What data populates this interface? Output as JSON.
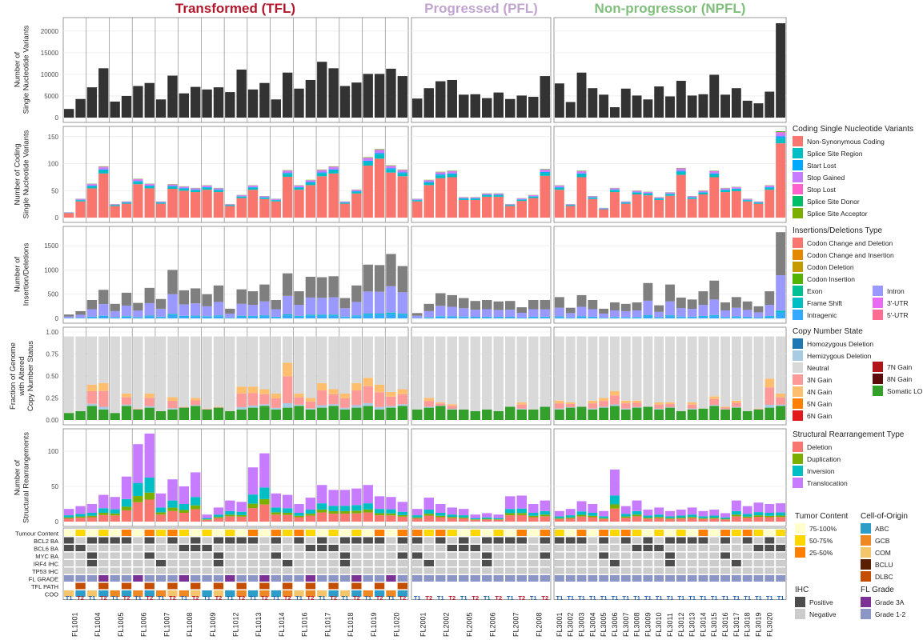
{
  "groups": [
    {
      "label": "Transformed (TFL)",
      "color": "#b2182b"
    },
    {
      "label": "Progressed (PFL)",
      "color": "#c2a5cf"
    },
    {
      "label": "Non-progressor (NPFL)",
      "color": "#7fbf7b"
    }
  ],
  "panel_labels": {
    "snv": [
      "Number of",
      "Single Nucleotide Variants"
    ],
    "coding": [
      "Number of Coding",
      "Single Nucleotide Variants"
    ],
    "indel": [
      "Number of",
      "Insertion/Deletions"
    ],
    "cn": [
      "Fraction of Genome",
      "with Altered",
      "Copy Number Status"
    ],
    "sv": [
      "Number of",
      "Structural Rearrangements"
    ]
  },
  "colors": {
    "grid": "#ebebeb",
    "frame": "#7f7f7f",
    "dark_bar": "#333333",
    "non_synonymous": "#f8766d",
    "splice_region": "#00bfc4",
    "start_lost": "#00a9ff",
    "stop_gained": "#c77cff",
    "stop_lost": "#ff61cc",
    "splice_donor": "#00be67",
    "splice_acceptor": "#7cae00",
    "indel_grey": "#7f7f7f",
    "intron": "#9999ff",
    "frameshift": "#00bfc4",
    "intragenic": "#33aaff",
    "neutral": "#d9d9d9",
    "hemizygous": "#a6cbe3",
    "homozygous": "#1f78b4",
    "gain3": "#fb9a99",
    "gain4": "#fdbf6f",
    "gain5": "#ff7f00",
    "gain6": "#e31a1c",
    "gain7": "#b11518",
    "gain8": "#5c0a0a",
    "loh": "#33a02c",
    "sv_deletion": "#f8766d",
    "sv_duplication": "#7cae00",
    "sv_inversion": "#00bfc4",
    "sv_translocation": "#c77cff",
    "annot_grey": "#cccccc",
    "annot_dark": "#4d4d4d",
    "tc_75": "#ffffcc",
    "tc_50": "#ffd700",
    "tc_25": "#ff7f00",
    "grade_3a": "#7b3294",
    "grade_12": "#8c96c6",
    "path_dlbc": "#c44e00",
    "path_bclu": "#5a1f00",
    "coo_gcb": "#ee8822",
    "coo_abc": "#2b9dc8",
    "coo_com": "#f4c56a"
  },
  "chart_data": [
    {
      "type": "bar",
      "title": "",
      "ylabel": "Number of Single Nucleotide Variants",
      "ylim": [
        0,
        22000
      ],
      "yticks": [
        0,
        5000,
        10000,
        15000,
        20000
      ],
      "facets": [
        {
          "name": "Transformed (TFL)",
          "values": [
            2000,
            4300,
            7000,
            11400,
            3700,
            5000,
            7300,
            8000,
            4200,
            9700,
            5600,
            7100,
            6500,
            7000,
            5900,
            11100,
            6500,
            8000,
            4200,
            10400,
            6700,
            8700,
            12900,
            11400,
            7300,
            8100,
            10100,
            10100,
            11300,
            9600
          ]
        },
        {
          "name": "Progressed (PFL)",
          "values": [
            4400,
            6800,
            8400,
            8700,
            5300,
            5400,
            4500,
            5800,
            4300,
            5100,
            4800,
            9600
          ]
        },
        {
          "name": "Non-progressor (NPFL)",
          "values": [
            7900,
            3600,
            10400,
            6800,
            5300,
            2400,
            6700,
            5100,
            4200,
            7200,
            4900,
            8500,
            5100,
            5400,
            9900,
            5300,
            6800,
            3900,
            3300,
            6000,
            21800
          ]
        }
      ]
    },
    {
      "type": "bar",
      "title": "",
      "ylabel": "Number of Coding Single Nucleotide Variants",
      "ylim": [
        0,
        160
      ],
      "yticks": [
        0,
        50,
        100,
        150
      ],
      "legend_title": "Coding Single Nucleotide Variants",
      "series": [
        "Non-Synonymous Coding",
        "Splice Site Region",
        "Start Lost",
        "Stop Gained",
        "Stop Lost",
        "Splice Site Donor",
        "Splice Site Acceptor"
      ],
      "facets": [
        {
          "name": "Transformed (TFL)",
          "totals": [
            10,
            35,
            63,
            95,
            25,
            30,
            72,
            63,
            30,
            62,
            58,
            55,
            60,
            55,
            25,
            42,
            60,
            40,
            35,
            88,
            60,
            70,
            89,
            95,
            30,
            52,
            112,
            127,
            97,
            89
          ]
        },
        {
          "name": "Progressed (PFL)",
          "totals": [
            35,
            70,
            85,
            87,
            38,
            38,
            45,
            45,
            25,
            36,
            42,
            90
          ]
        },
        {
          "name": "Non-progressor (NPFL)",
          "totals": [
            60,
            25,
            87,
            40,
            18,
            55,
            30,
            50,
            48,
            38,
            47,
            92,
            40,
            50,
            87,
            55,
            57,
            35,
            30,
            60,
            160
          ]
        }
      ]
    },
    {
      "type": "bar",
      "title": "",
      "ylabel": "Number of Insertion/Deletions",
      "ylim": [
        0,
        1800
      ],
      "yticks": [
        0,
        500,
        1000,
        1500
      ],
      "legend_title": "Insertions/Deletions Type",
      "series": [
        "Codon Change and Deletion",
        "Codon Change and Insertion",
        "Codon Deletion",
        "Codon Insertion",
        "Exon",
        "Frame Shift",
        "Intragenic",
        "Intron",
        "3'-UTR",
        "5'-UTR"
      ],
      "facets": [
        {
          "name": "Transformed (TFL)",
          "totals": [
            80,
            150,
            380,
            590,
            300,
            530,
            320,
            630,
            400,
            1000,
            580,
            620,
            500,
            680,
            200,
            600,
            560,
            700,
            380,
            930,
            560,
            860,
            850,
            870,
            420,
            680,
            1110,
            1100,
            1330,
            1080
          ]
        },
        {
          "name": "Progressed (PFL)",
          "totals": [
            110,
            300,
            520,
            480,
            420,
            360,
            380,
            350,
            360,
            230,
            380,
            380
          ]
        },
        {
          "name": "Non-progressor (NPFL)",
          "totals": [
            440,
            220,
            480,
            380,
            200,
            330,
            300,
            330,
            730,
            270,
            700,
            430,
            390,
            560,
            780,
            330,
            440,
            350,
            250,
            560,
            1780
          ]
        }
      ]
    },
    {
      "type": "bar",
      "title": "",
      "ylabel": "Fraction of Genome with Altered Copy Number Status",
      "ylim": [
        0,
        1.0
      ],
      "yticks": [
        0.0,
        0.25,
        0.5,
        0.75,
        1.0
      ],
      "legend_title": "Copy Number State",
      "series": [
        "Homozygous Deletion",
        "Hemizygous Deletion",
        "Neutral",
        "3N Gain",
        "4N Gain",
        "5N Gain",
        "6N Gain",
        "7N Gain",
        "8N Gain",
        "Somatic LOH"
      ],
      "facets": [
        {
          "name": "Transformed (TFL)",
          "altered": [
            0.08,
            0.1,
            0.4,
            0.42,
            0.08,
            0.3,
            0.13,
            0.3,
            0.1,
            0.26,
            0.15,
            0.25,
            0.13,
            0.15,
            0.1,
            0.38,
            0.38,
            0.35,
            0.3,
            0.65,
            0.3,
            0.25,
            0.42,
            0.35,
            0.3,
            0.42,
            0.48,
            0.4,
            0.32,
            0.35
          ]
        },
        {
          "name": "Progressed (PFL)",
          "altered": [
            0.12,
            0.25,
            0.2,
            0.18,
            0.12,
            0.1,
            0.12,
            0.1,
            0.15,
            0.2,
            0.12,
            0.15
          ]
        },
        {
          "name": "Non-progressor (NPFL)",
          "altered": [
            0.22,
            0.2,
            0.15,
            0.22,
            0.25,
            0.33,
            0.22,
            0.22,
            0.15,
            0.2,
            0.2,
            0.1,
            0.2,
            0.13,
            0.27,
            0.15,
            0.22,
            0.1,
            0.13,
            0.47,
            0.3
          ]
        }
      ]
    },
    {
      "type": "bar",
      "title": "",
      "ylabel": "Number of Structural Rearrangements",
      "ylim": [
        0,
        125
      ],
      "yticks": [
        0,
        50,
        100
      ],
      "legend_title": "Structural Rearrangement Type",
      "series": [
        "Deletion",
        "Duplication",
        "Inversion",
        "Translocation"
      ],
      "facets": [
        {
          "name": "Transformed (TFL)",
          "totals": [
            18,
            22,
            25,
            38,
            35,
            64,
            110,
            125,
            40,
            60,
            50,
            70,
            10,
            20,
            30,
            28,
            77,
            97,
            40,
            38,
            25,
            34,
            52,
            45,
            45,
            47,
            52,
            36,
            35,
            28
          ]
        },
        {
          "name": "Progressed (PFL)",
          "totals": [
            18,
            34,
            25,
            20,
            18,
            10,
            12,
            10,
            36,
            37,
            25,
            30
          ]
        },
        {
          "name": "Non-progressor (NPFL)",
          "totals": [
            15,
            18,
            29,
            25,
            15,
            74,
            22,
            30,
            17,
            20,
            15,
            17,
            20,
            15,
            17,
            12,
            30,
            22,
            27,
            25,
            26
          ]
        }
      ]
    }
  ],
  "legends": {
    "coding": {
      "title": "Coding Single Nucleotide Variants",
      "items": [
        "Non-Synonymous Coding",
        "Splice Site Region",
        "Start Lost",
        "Stop Gained",
        "Stop Lost",
        "Splice Site Donor",
        "Splice Site Acceptor"
      ]
    },
    "indel": {
      "title": "Insertions/Deletions Type",
      "items_col1": [
        "Codon Change and Deletion",
        "Codon Change and Insertion",
        "Codon Deletion",
        "Codon Insertion",
        "Exon",
        "Frame Shift",
        "Intragenic"
      ],
      "items_col2": [
        "Intron",
        "3'-UTR",
        "5'-UTR"
      ]
    },
    "cn": {
      "title": "Copy Number State",
      "items_col1": [
        "Homozygous Deletion",
        "Hemizygous Deletion",
        "Neutral",
        "3N Gain",
        "4N Gain",
        "5N Gain",
        "6N Gain"
      ],
      "items_col2": [
        "7N Gain",
        "8N Gain",
        "Somatic LOH"
      ]
    },
    "sv": {
      "title": "Structural Rearrangement Type",
      "items": [
        "Deletion",
        "Duplication",
        "Inversion",
        "Translocation"
      ]
    },
    "tumor": {
      "title": "Tumor Content",
      "items": [
        "75-100%",
        "50-75%",
        "25-50%"
      ]
    },
    "coo": {
      "title": "Cell-of-Origin",
      "items": [
        "ABC",
        "GCB",
        "COM",
        "BCLU",
        "DLBC"
      ]
    },
    "ihc": {
      "title": "IHC",
      "items": [
        "Positive",
        "Negative"
      ]
    },
    "grade": {
      "title": "FL Grade",
      "items": [
        "Grade 3A",
        "Grade 1-2"
      ]
    }
  },
  "annotation_rows": [
    "Tumour Content",
    "BCL2 BA",
    "BCL6 BA",
    "MYC BA",
    "IRF4 IHC",
    "TP53 IHC",
    "FL GRADE",
    "TFL PATH",
    "COO"
  ],
  "timepoints": [
    "T1",
    "T2"
  ],
  "patients": {
    "tfl": [
      "FL1001",
      "FL1004",
      "FL1005",
      "FL1006",
      "FL1007",
      "FL1008",
      "FL1009",
      "FL1012",
      "FL1013",
      "FL1014",
      "FL1016",
      "FL1017",
      "FL1018",
      "FL1019",
      "FL1020"
    ],
    "pfl": [
      "FL2001",
      "FL2002",
      "FL2005",
      "FL2006",
      "FL2007",
      "FL2008"
    ],
    "npfl": [
      "FL3001",
      "FL3002",
      "FL3003",
      "FL3004",
      "FL3005",
      "FL3006",
      "FL3007",
      "FL3008",
      "FL3009",
      "FL3010",
      "FL3011",
      "FL3012",
      "FL3013",
      "FL3014",
      "FL3015",
      "FL3016",
      "FL3017",
      "FL3018",
      "FL3019",
      "FL3020"
    ]
  }
}
